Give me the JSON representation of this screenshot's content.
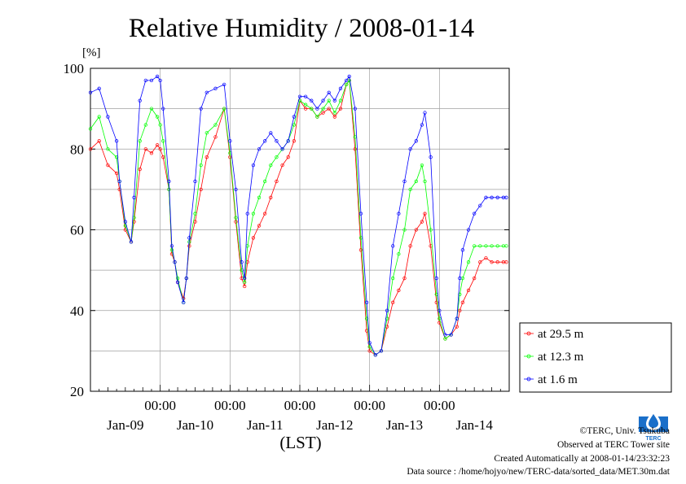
{
  "chart_data": {
    "type": "line",
    "title": "Relative Humidity / 2008-01-14",
    "ylabel": "[%]",
    "xlabel": "(LST)",
    "ylim": [
      20,
      100
    ],
    "yticks": [
      20,
      40,
      60,
      80,
      100
    ],
    "xlim_hours": [
      0,
      144
    ],
    "time_tick_labels": [
      "00:00",
      "00:00",
      "00:00",
      "00:00",
      "00:00"
    ],
    "date_labels": [
      "Jan-09",
      "Jan-10",
      "Jan-11",
      "Jan-12",
      "Jan-13",
      "Jan-14"
    ],
    "grid": true,
    "legend_position": "right",
    "x": [
      0,
      3,
      6,
      9,
      10,
      12,
      14,
      15,
      17,
      19,
      21,
      23,
      24,
      25,
      27,
      28,
      29,
      30,
      32,
      33,
      34,
      36,
      38,
      40,
      43,
      46,
      48,
      50,
      52,
      53,
      54,
      56,
      58,
      60,
      62,
      64,
      66,
      68,
      70,
      72,
      74,
      76,
      78,
      80,
      82,
      84,
      86,
      88,
      89,
      91,
      93,
      95,
      96,
      98,
      100,
      102,
      104,
      106,
      108,
      110,
      112,
      114,
      115,
      117,
      119,
      120,
      122,
      124,
      126,
      127,
      128,
      130,
      132,
      134,
      136,
      138,
      140,
      142,
      143
    ],
    "series": [
      {
        "name": "at 29.5 m",
        "color": "#ff0000",
        "values": [
          80,
          82,
          76,
          74,
          70,
          60,
          57,
          62,
          75,
          80,
          79,
          81,
          80,
          78,
          70,
          54,
          52,
          47,
          43,
          48,
          56,
          62,
          70,
          78,
          83,
          90,
          78,
          62,
          48,
          46,
          52,
          58,
          61,
          64,
          68,
          72,
          76,
          78,
          82,
          92,
          90,
          90,
          88,
          89,
          90,
          88,
          90,
          96,
          97,
          80,
          55,
          35,
          30,
          29,
          30,
          36,
          42,
          45,
          48,
          56,
          60,
          62,
          64,
          56,
          42,
          37,
          33,
          34,
          36,
          40,
          42,
          45,
          48,
          52,
          53,
          52,
          52,
          52,
          52
        ]
      },
      {
        "name": "at 12.3 m",
        "color": "#00ff00",
        "values": [
          85,
          88,
          80,
          78,
          72,
          61,
          57,
          63,
          82,
          86,
          90,
          88,
          86,
          82,
          70,
          55,
          52,
          48,
          42,
          48,
          57,
          64,
          76,
          84,
          86,
          90,
          79,
          63,
          50,
          47,
          56,
          64,
          68,
          72,
          76,
          78,
          80,
          82,
          86,
          92,
          91,
          90,
          88,
          90,
          92,
          89,
          92,
          96,
          97,
          83,
          58,
          38,
          31,
          29,
          30,
          38,
          48,
          54,
          60,
          70,
          72,
          76,
          72,
          60,
          44,
          38,
          33,
          34,
          38,
          44,
          48,
          52,
          56,
          56,
          56,
          56,
          56,
          56,
          56
        ]
      },
      {
        "name": "at 1.6 m",
        "color": "#0000ff",
        "values": [
          94,
          95,
          88,
          82,
          72,
          62,
          57,
          68,
          92,
          97,
          97,
          98,
          97,
          90,
          72,
          56,
          52,
          47,
          42,
          48,
          58,
          72,
          90,
          94,
          95,
          96,
          82,
          70,
          52,
          48,
          64,
          76,
          80,
          82,
          84,
          82,
          80,
          82,
          88,
          93,
          93,
          92,
          90,
          92,
          94,
          92,
          95,
          97,
          98,
          90,
          64,
          42,
          32,
          29,
          30,
          40,
          56,
          64,
          72,
          80,
          82,
          86,
          89,
          78,
          48,
          40,
          34,
          34,
          38,
          48,
          55,
          60,
          64,
          66,
          68,
          68,
          68,
          68,
          68
        ]
      }
    ]
  },
  "footer": {
    "copyright": "©TERC, Univ. Tsukuba",
    "site": "Observed at TERC Tower site",
    "created": "Created Automatically at 2008-01-14/23:32:23",
    "source": "Data source : /home/hojyo/new/TERC-data/sorted_data/MET.30m.dat"
  },
  "logo": {
    "text": "TERC",
    "icon": "terc-logo-icon",
    "color": "#1a6fc9"
  }
}
